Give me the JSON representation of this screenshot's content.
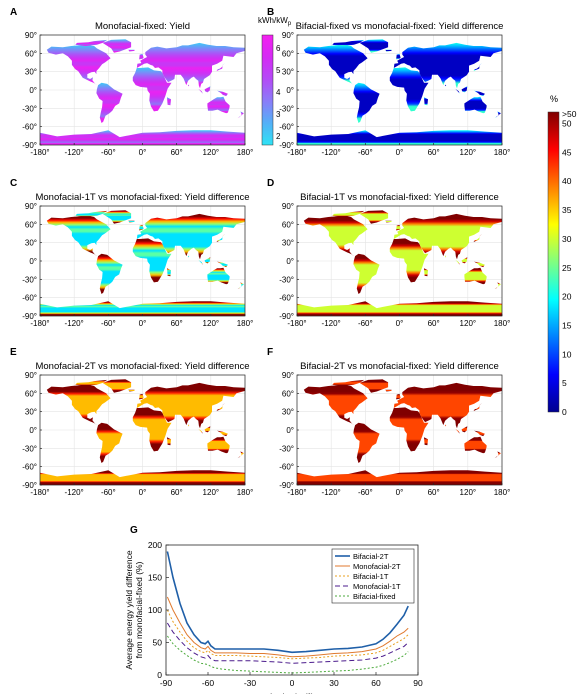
{
  "panels": [
    {
      "letter": "A",
      "title": "Monofacial-fixed: Yield",
      "mode": "yield"
    },
    {
      "letter": "B",
      "title": "Bifacial-fixed vs monofacial-fixed: Yield difference",
      "mode": "bf"
    },
    {
      "letter": "C",
      "title": "Monofacial-1T vs monofacial-fixed: Yield difference",
      "mode": "m1"
    },
    {
      "letter": "D",
      "title": "Bifacial-1T vs monofacial-fixed: Yield difference",
      "mode": "b1"
    },
    {
      "letter": "E",
      "title": "Monofacial-2T vs monofacial-fixed: Yield difference",
      "mode": "m2"
    },
    {
      "letter": "F",
      "title": "Bifacial-2T vs monofacial-fixed: Yield difference",
      "mode": "b2"
    }
  ],
  "map_axes": {
    "x_ticks": [
      "-180°",
      "-120°",
      "-60°",
      "0°",
      "60°",
      "120°",
      "180°"
    ],
    "y_ticks": [
      "90°",
      "60°",
      "30°",
      "0°",
      "-30°",
      "-60°",
      "-90°"
    ]
  },
  "colorbars": {
    "yield": {
      "unit_main": "kWh/kW",
      "unit_sub": "p",
      "ticks": [
        "6",
        "5",
        "4",
        "3",
        "2"
      ],
      "range": [
        1.6,
        6.6
      ],
      "colors": [
        "#2fe3f5",
        "#54b0f7",
        "#8a7cf8",
        "#b44af6",
        "#d52af4",
        "#f420f0"
      ]
    },
    "diff": {
      "unit": "%",
      "top_label": ">50",
      "ticks": [
        "50",
        "45",
        "40",
        "35",
        "30",
        "25",
        "20",
        "15",
        "10",
        "5",
        "0"
      ],
      "range": [
        0,
        52
      ],
      "colors": [
        "#00008f",
        "#0000ff",
        "#0080ff",
        "#00ffff",
        "#80ff80",
        "#ffff00",
        "#ff8000",
        "#ff0000",
        "#800000"
      ]
    }
  },
  "chart_data": {
    "panel_letter": "G",
    "type": "line",
    "xlabel": "Latitude (°)",
    "ylabel": "Average energy yield difference from monofacial-fixed (%)",
    "ylabel_lines": [
      "Average energy yield difference",
      "from monofacial-fixed (%)"
    ],
    "xlim": [
      -90,
      90
    ],
    "ylim": [
      0,
      200
    ],
    "xticks": [
      -90,
      -60,
      -30,
      0,
      30,
      60,
      90
    ],
    "yticks": [
      0,
      50,
      100,
      150,
      200
    ],
    "grid": false,
    "legend_position": "top-right",
    "x": [
      -89,
      -85,
      -80,
      -75,
      -70,
      -65,
      -62,
      -60,
      -58,
      -55,
      -50,
      -40,
      -30,
      -20,
      -10,
      0,
      10,
      20,
      30,
      40,
      50,
      60,
      65,
      70,
      75,
      80,
      83
    ],
    "series": [
      {
        "name": "Bifacial-2T",
        "color": "#1f5fa8",
        "dash": "",
        "width": 1.6,
        "values": [
          190,
          150,
          110,
          80,
          62,
          50,
          48,
          52,
          45,
          40,
          40,
          40,
          40,
          40,
          38,
          35,
          36,
          38,
          40,
          41,
          43,
          48,
          55,
          65,
          78,
          92,
          106
        ]
      },
      {
        "name": "Monofacial-2T",
        "color": "#e07a2f",
        "dash": "",
        "width": 1.0,
        "values": [
          120,
          100,
          80,
          62,
          50,
          42,
          40,
          44,
          38,
          34,
          34,
          34,
          33,
          33,
          31,
          28,
          29,
          31,
          33,
          34,
          36,
          40,
          45,
          52,
          60,
          66,
          72
        ]
      },
      {
        "name": "Bifacial-1T",
        "color": "#e8a020",
        "dash": "2,2",
        "width": 1.0,
        "values": [
          100,
          82,
          66,
          52,
          42,
          36,
          34,
          38,
          33,
          30,
          30,
          30,
          29,
          28,
          27,
          25,
          26,
          27,
          29,
          30,
          31,
          34,
          38,
          44,
          50,
          56,
          62
        ]
      },
      {
        "name": "Monofacial-1T",
        "color": "#4b1b8c",
        "dash": "5,3",
        "width": 1.0,
        "values": [
          80,
          66,
          53,
          42,
          34,
          28,
          26,
          30,
          25,
          22,
          22,
          22,
          22,
          21,
          20,
          18,
          19,
          20,
          21,
          22,
          23,
          26,
          29,
          34,
          39,
          44,
          50
        ]
      },
      {
        "name": "Bifacial-fixed",
        "color": "#4caa3c",
        "dash": "2,2",
        "width": 1.0,
        "values": [
          60,
          48,
          38,
          30,
          23,
          18,
          17,
          16,
          13,
          11,
          9,
          7,
          6,
          5,
          4,
          3,
          4,
          5,
          6,
          7,
          9,
          12,
          15,
          19,
          24,
          30,
          36
        ]
      }
    ]
  }
}
